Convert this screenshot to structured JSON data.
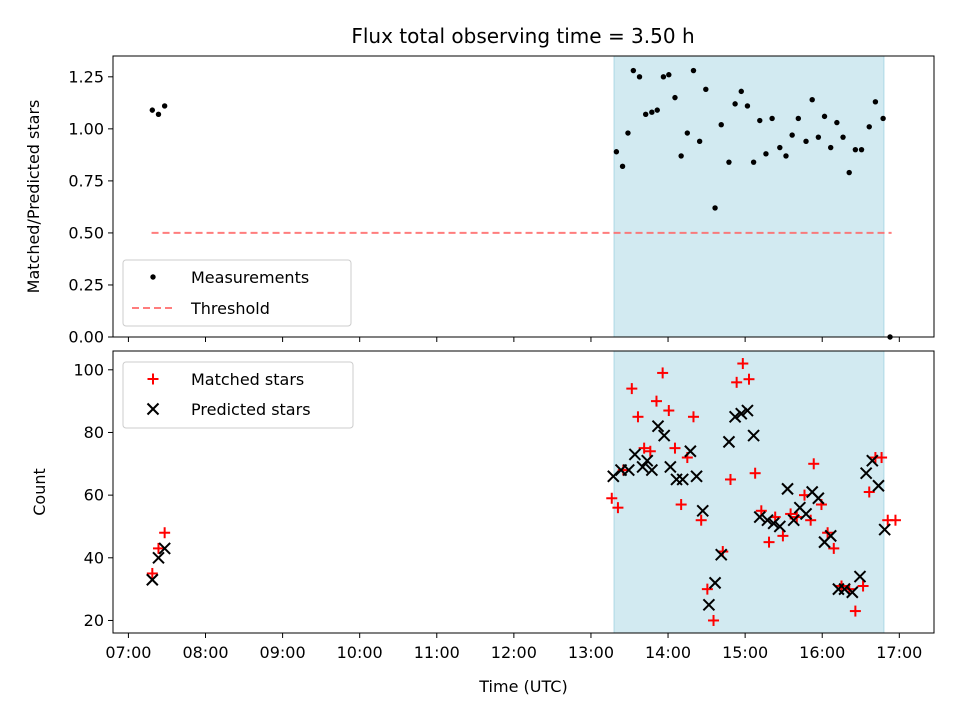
{
  "chart_data": {
    "type": "scatter",
    "title": "Flux total observing time = 3.50 h",
    "xlabel": "Time (UTC)",
    "x_unit": "hours UTC (decimal)",
    "xlim": [
      6.8,
      17.45
    ],
    "xticks": [
      7,
      8,
      9,
      10,
      11,
      12,
      13,
      14,
      15,
      16,
      17
    ],
    "xtick_labels": [
      "07:00",
      "08:00",
      "09:00",
      "10:00",
      "11:00",
      "12:00",
      "13:00",
      "14:00",
      "15:00",
      "16:00",
      "17:00"
    ],
    "shaded_interval": [
      13.3,
      16.8
    ],
    "shade_color": "#add8e6",
    "top": {
      "ylabel": "Matched/Predicted stars",
      "ylim": [
        0,
        1.35
      ],
      "yticks": [
        0,
        0.25,
        0.5,
        0.75,
        1.0,
        1.25
      ],
      "ytick_labels": [
        "0.00",
        "0.25",
        "0.50",
        "0.75",
        "1.00",
        "1.25"
      ],
      "threshold": {
        "value": 0.5,
        "x_range": [
          7.3,
          16.9
        ],
        "color": "#ff6666"
      },
      "legend": [
        "Measurements",
        "Threshold"
      ],
      "measurements": [
        [
          7.31,
          1.09
        ],
        [
          7.39,
          1.07
        ],
        [
          7.47,
          1.11
        ],
        [
          13.33,
          0.89
        ],
        [
          13.41,
          0.82
        ],
        [
          13.48,
          0.98
        ],
        [
          13.55,
          1.28
        ],
        [
          13.63,
          1.25
        ],
        [
          13.71,
          1.07
        ],
        [
          13.79,
          1.08
        ],
        [
          13.86,
          1.09
        ],
        [
          13.94,
          1.25
        ],
        [
          14.01,
          1.26
        ],
        [
          14.09,
          1.15
        ],
        [
          14.17,
          0.87
        ],
        [
          14.25,
          0.98
        ],
        [
          14.33,
          1.28
        ],
        [
          14.41,
          0.94
        ],
        [
          14.49,
          1.19
        ],
        [
          14.61,
          0.62
        ],
        [
          14.69,
          1.02
        ],
        [
          14.79,
          0.84
        ],
        [
          14.87,
          1.12
        ],
        [
          14.95,
          1.18
        ],
        [
          15.03,
          1.11
        ],
        [
          15.11,
          0.84
        ],
        [
          15.19,
          1.04
        ],
        [
          15.27,
          0.88
        ],
        [
          15.35,
          1.05
        ],
        [
          15.45,
          0.91
        ],
        [
          15.53,
          0.87
        ],
        [
          15.61,
          0.97
        ],
        [
          15.69,
          1.05
        ],
        [
          15.79,
          0.94
        ],
        [
          15.87,
          1.14
        ],
        [
          15.95,
          0.96
        ],
        [
          16.03,
          1.06
        ],
        [
          16.11,
          0.91
        ],
        [
          16.19,
          1.03
        ],
        [
          16.27,
          0.96
        ],
        [
          16.35,
          0.79
        ],
        [
          16.43,
          0.9
        ],
        [
          16.51,
          0.9
        ],
        [
          16.61,
          1.01
        ],
        [
          16.69,
          1.13
        ],
        [
          16.79,
          1.05
        ],
        [
          16.88,
          0.0
        ]
      ]
    },
    "bottom": {
      "ylabel": "Count",
      "ylim": [
        16,
        106
      ],
      "yticks": [
        20,
        40,
        60,
        80,
        100
      ],
      "ytick_labels": [
        "20",
        "40",
        "60",
        "80",
        "100"
      ],
      "legend": [
        "Matched stars",
        "Predicted stars"
      ],
      "matched_color": "#ff0000",
      "predicted_color": "#000000",
      "matched": [
        [
          7.31,
          35
        ],
        [
          7.39,
          43
        ],
        [
          7.47,
          48
        ],
        [
          13.27,
          59
        ],
        [
          13.35,
          56
        ],
        [
          13.42,
          68
        ],
        [
          13.53,
          94
        ],
        [
          13.61,
          85
        ],
        [
          13.69,
          75
        ],
        [
          13.77,
          74
        ],
        [
          13.85,
          90
        ],
        [
          13.93,
          99
        ],
        [
          14.01,
          87
        ],
        [
          14.09,
          75
        ],
        [
          14.17,
          57
        ],
        [
          14.25,
          72
        ],
        [
          14.33,
          85
        ],
        [
          14.43,
          52
        ],
        [
          14.51,
          30
        ],
        [
          14.59,
          20
        ],
        [
          14.71,
          42
        ],
        [
          14.81,
          65
        ],
        [
          14.89,
          96
        ],
        [
          14.97,
          102
        ],
        [
          15.05,
          97
        ],
        [
          15.13,
          67
        ],
        [
          15.21,
          55
        ],
        [
          15.31,
          45
        ],
        [
          15.39,
          53
        ],
        [
          15.49,
          47
        ],
        [
          15.59,
          54
        ],
        [
          15.67,
          53
        ],
        [
          15.77,
          60
        ],
        [
          15.85,
          52
        ],
        [
          15.89,
          70
        ],
        [
          15.99,
          57
        ],
        [
          16.07,
          48
        ],
        [
          16.15,
          43
        ],
        [
          16.25,
          31
        ],
        [
          16.35,
          30
        ],
        [
          16.43,
          23
        ],
        [
          16.53,
          31
        ],
        [
          16.61,
          61
        ],
        [
          16.69,
          72
        ],
        [
          16.77,
          72
        ],
        [
          16.85,
          52
        ],
        [
          16.95,
          52
        ]
      ],
      "predicted": [
        [
          7.31,
          33
        ],
        [
          7.39,
          40
        ],
        [
          7.47,
          43
        ],
        [
          13.29,
          66
        ],
        [
          13.39,
          68
        ],
        [
          13.49,
          68
        ],
        [
          13.57,
          73
        ],
        [
          13.67,
          69
        ],
        [
          13.73,
          71
        ],
        [
          13.79,
          68
        ],
        [
          13.87,
          82
        ],
        [
          13.95,
          79
        ],
        [
          14.03,
          69
        ],
        [
          14.11,
          65
        ],
        [
          14.19,
          65
        ],
        [
          14.29,
          74
        ],
        [
          14.37,
          66
        ],
        [
          14.45,
          55
        ],
        [
          14.53,
          25
        ],
        [
          14.61,
          32
        ],
        [
          14.69,
          41
        ],
        [
          14.79,
          77
        ],
        [
          14.87,
          85
        ],
        [
          14.95,
          86
        ],
        [
          15.03,
          87
        ],
        [
          15.11,
          79
        ],
        [
          15.19,
          53
        ],
        [
          15.29,
          52
        ],
        [
          15.37,
          51
        ],
        [
          15.45,
          50
        ],
        [
          15.55,
          62
        ],
        [
          15.63,
          52
        ],
        [
          15.71,
          56
        ],
        [
          15.79,
          54
        ],
        [
          15.87,
          61
        ],
        [
          15.95,
          59
        ],
        [
          16.03,
          45
        ],
        [
          16.11,
          47
        ],
        [
          16.21,
          30
        ],
        [
          16.29,
          30
        ],
        [
          16.39,
          29
        ],
        [
          16.49,
          34
        ],
        [
          16.57,
          67
        ],
        [
          16.65,
          71
        ],
        [
          16.73,
          63
        ],
        [
          16.81,
          49
        ]
      ]
    }
  }
}
